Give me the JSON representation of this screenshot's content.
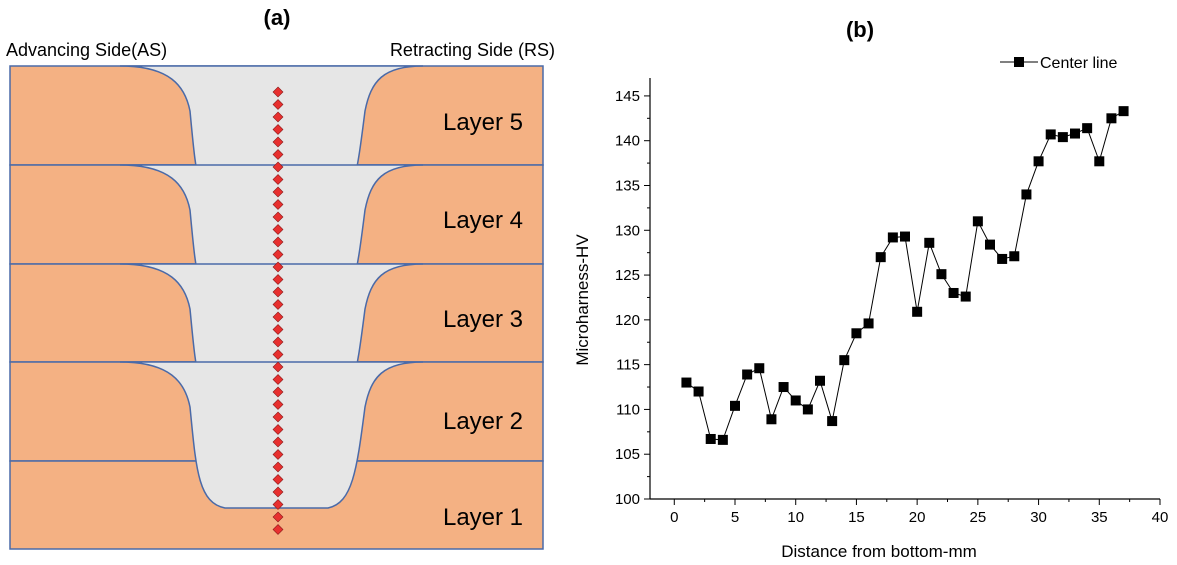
{
  "panel_a": {
    "label": "(a)",
    "advancing_side": "Advancing Side(AS)",
    "retracting_side": "Retracting Side (RS)",
    "layers": [
      "Layer 5",
      "Layer 4",
      "Layer 3",
      "Layer 2",
      "Layer 1"
    ],
    "colors": {
      "base": "#f4b183",
      "stir": "#e6e6e6",
      "line": "#4a6aa8",
      "marker": "#e8302f"
    }
  },
  "chart_data": {
    "type": "scatter",
    "title": "(b)",
    "xlabel": "Distance from bottom-mm",
    "ylabel": "Microharness-HV",
    "xlim": [
      -2,
      40
    ],
    "ylim": [
      100,
      147
    ],
    "xticks": [
      0,
      5,
      10,
      15,
      20,
      25,
      30,
      35,
      40
    ],
    "yticks": [
      100,
      105,
      110,
      115,
      120,
      125,
      130,
      135,
      140,
      145
    ],
    "grid": false,
    "legend_position": "top-right",
    "series": [
      {
        "name": "Center line",
        "x": [
          1,
          2,
          3,
          4,
          5,
          6,
          7,
          8,
          9,
          10,
          11,
          12,
          13,
          14,
          15,
          16,
          17,
          18,
          19,
          20,
          21,
          22,
          23,
          24,
          25,
          26,
          27,
          28,
          29,
          30,
          31,
          32,
          33,
          34,
          35,
          36,
          37
        ],
        "y": [
          113,
          112,
          106.7,
          106.6,
          110.4,
          113.9,
          114.6,
          108.9,
          112.5,
          111,
          110,
          113.2,
          108.7,
          115.5,
          118.5,
          119.6,
          127,
          129.2,
          129.3,
          120.9,
          128.6,
          125.1,
          123,
          122.6,
          131,
          128.4,
          126.8,
          127.1,
          134,
          137.7,
          140.7,
          140.4,
          140.8,
          141.4,
          137.7,
          142.5,
          143.3
        ]
      }
    ]
  }
}
